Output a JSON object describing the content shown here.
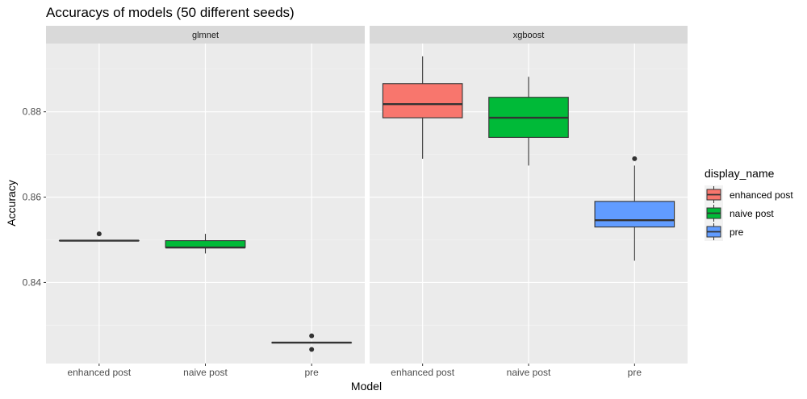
{
  "chart_data": {
    "type": "boxplot",
    "title": "Accuracys of models (50 different seeds)",
    "xlabel": "Model",
    "ylabel": "Accuracy",
    "ylim": [
      0.821,
      0.896
    ],
    "yticks": [
      0.84,
      0.86,
      0.88
    ],
    "ytick_labels": [
      "0.84",
      "0.86",
      "0.88"
    ],
    "categories": [
      "enhanced post",
      "naive post",
      "pre"
    ],
    "legend": {
      "title": "display_name",
      "position": "right",
      "entries": [
        "enhanced post",
        "naive post",
        "pre"
      ]
    },
    "colors": {
      "enhanced post": "#f8766d",
      "naive post": "#00ba38",
      "pre": "#619cff"
    },
    "facets": [
      {
        "name": "glmnet",
        "boxes": [
          {
            "category": "enhanced post",
            "whisker_low": 0.8498,
            "q1": 0.8498,
            "median": 0.8498,
            "q3": 0.8498,
            "whisker_high": 0.8498,
            "outliers": [
              0.8514
            ]
          },
          {
            "category": "naive post",
            "whisker_low": 0.8468,
            "q1": 0.8482,
            "median": 0.8482,
            "q3": 0.8498,
            "whisker_high": 0.8514,
            "outliers": []
          },
          {
            "category": "pre",
            "whisker_low": 0.8259,
            "q1": 0.8259,
            "median": 0.8259,
            "q3": 0.8259,
            "whisker_high": 0.8259,
            "outliers": [
              0.8275,
              0.8243
            ]
          }
        ]
      },
      {
        "name": "xgboost",
        "boxes": [
          {
            "category": "enhanced post",
            "whisker_low": 0.869,
            "q1": 0.8786,
            "median": 0.8818,
            "q3": 0.8866,
            "whisker_high": 0.893,
            "outliers": []
          },
          {
            "category": "naive post",
            "whisker_low": 0.8674,
            "q1": 0.874,
            "median": 0.8786,
            "q3": 0.8834,
            "whisker_high": 0.8882,
            "outliers": []
          },
          {
            "category": "pre",
            "whisker_low": 0.8451,
            "q1": 0.853,
            "median": 0.8546,
            "q3": 0.859,
            "whisker_high": 0.8674,
            "outliers": [
              0.869
            ]
          }
        ]
      }
    ]
  }
}
